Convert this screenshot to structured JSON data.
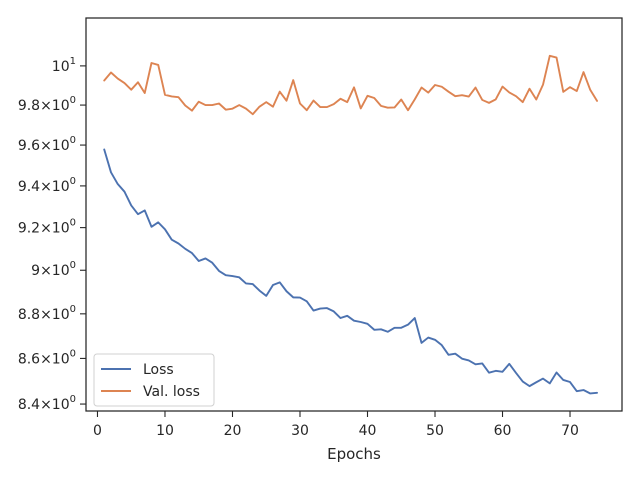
{
  "chart_data": {
    "type": "line",
    "title": "",
    "xlabel": "Epochs",
    "ylabel": "",
    "yscale": "log",
    "xlim": [
      -1.7,
      77.7
    ],
    "ylim": [
      8.37,
      10.25
    ],
    "grid": false,
    "legend_position": "lower-left",
    "x_ticks": [
      0,
      10,
      20,
      30,
      40,
      50,
      60,
      70
    ],
    "x_tick_labels": [
      "0",
      "10",
      "20",
      "30",
      "40",
      "50",
      "60",
      "70"
    ],
    "y_ticks": [
      8.4,
      8.6,
      8.8,
      9.0,
      9.2,
      9.4,
      9.6,
      9.8,
      10.0
    ],
    "y_tick_labels": [
      {
        "mant": "8.4",
        "exp": "0"
      },
      {
        "mant": "8.6",
        "exp": "0"
      },
      {
        "mant": "8.8",
        "exp": "0"
      },
      {
        "mant": "9",
        "exp": "0"
      },
      {
        "mant": "9.2",
        "exp": "0"
      },
      {
        "mant": "9.4",
        "exp": "0"
      },
      {
        "mant": "9.6",
        "exp": "0"
      },
      {
        "mant": "9.8",
        "exp": "0"
      },
      {
        "mant": "10",
        "exp": "1"
      }
    ],
    "x": [
      1,
      2,
      3,
      4,
      5,
      6,
      7,
      8,
      9,
      10,
      11,
      12,
      13,
      14,
      15,
      16,
      17,
      18,
      19,
      20,
      21,
      22,
      23,
      24,
      25,
      26,
      27,
      28,
      29,
      30,
      31,
      32,
      33,
      34,
      35,
      36,
      37,
      38,
      39,
      40,
      41,
      42,
      43,
      44,
      45,
      46,
      47,
      48,
      49,
      50,
      51,
      52,
      53,
      54,
      55,
      56,
      57,
      58,
      59,
      60,
      61,
      62,
      63,
      64,
      65,
      66,
      67,
      68,
      69,
      70,
      71,
      72,
      73,
      74
    ],
    "series": [
      {
        "name": "Loss",
        "color": "#4c72b0",
        "values": [
          9.578,
          9.466,
          9.409,
          9.372,
          9.306,
          9.264,
          9.282,
          9.204,
          9.225,
          9.192,
          9.143,
          9.125,
          9.1,
          9.08,
          9.043,
          9.055,
          9.035,
          8.997,
          8.977,
          8.973,
          8.967,
          8.939,
          8.936,
          8.906,
          8.882,
          8.932,
          8.944,
          8.903,
          8.875,
          8.874,
          8.857,
          8.815,
          8.824,
          8.826,
          8.811,
          8.781,
          8.791,
          8.769,
          8.763,
          8.755,
          8.728,
          8.73,
          8.719,
          8.737,
          8.737,
          8.751,
          8.781,
          8.669,
          8.693,
          8.683,
          8.659,
          8.616,
          8.621,
          8.599,
          8.591,
          8.574,
          8.578,
          8.537,
          8.545,
          8.541,
          8.576,
          8.536,
          8.498,
          8.478,
          8.495,
          8.511,
          8.49,
          8.538,
          8.505,
          8.496,
          8.456,
          8.461,
          8.446,
          8.449
        ]
      },
      {
        "name": "Val. loss",
        "color": "#dd8452",
        "values": [
          9.925,
          9.966,
          9.935,
          9.912,
          9.878,
          9.916,
          9.861,
          10.015,
          10.005,
          9.852,
          9.844,
          9.84,
          9.798,
          9.772,
          9.817,
          9.8,
          9.8,
          9.808,
          9.777,
          9.782,
          9.8,
          9.782,
          9.754,
          9.792,
          9.815,
          9.792,
          9.868,
          9.822,
          9.927,
          9.808,
          9.774,
          9.823,
          9.79,
          9.79,
          9.805,
          9.832,
          9.815,
          9.89,
          9.783,
          9.847,
          9.836,
          9.796,
          9.787,
          9.788,
          9.828,
          9.774,
          9.829,
          9.889,
          9.863,
          9.902,
          9.893,
          9.868,
          9.845,
          9.85,
          9.843,
          9.889,
          9.826,
          9.811,
          9.829,
          9.894,
          9.864,
          9.845,
          9.815,
          9.883,
          9.828,
          9.904,
          10.052,
          10.043,
          9.867,
          9.891,
          9.871,
          9.968,
          9.877,
          9.821
        ]
      }
    ]
  }
}
